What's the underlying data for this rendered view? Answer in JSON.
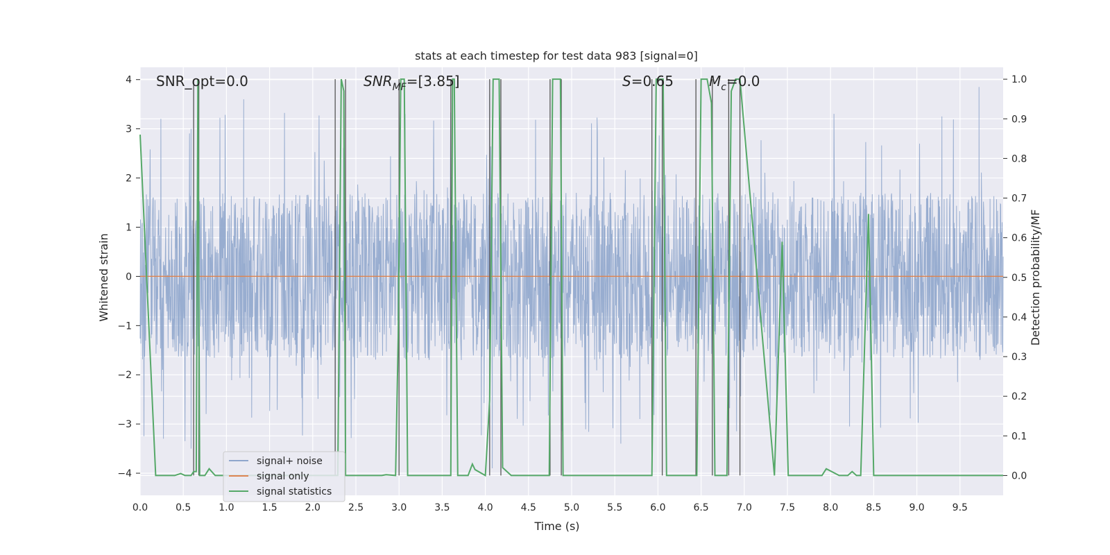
{
  "chart_data": {
    "type": "line",
    "title": "stats at each timestep for test data 983 [signal=0]",
    "xlabel": "Time (s)",
    "ylabel_left": "Whitened strain",
    "ylabel_right": "Detection probability/MF",
    "xlim": [
      0.0,
      10.0
    ],
    "ylim_left": [
      -4.45,
      4.25
    ],
    "ylim_right": [
      -0.05,
      1.03
    ],
    "x_ticks": [
      "0.0",
      "0.5",
      "1.0",
      "1.5",
      "2.0",
      "2.5",
      "3.0",
      "3.5",
      "4.0",
      "4.5",
      "5.0",
      "5.5",
      "6.0",
      "6.5",
      "7.0",
      "7.5",
      "8.0",
      "8.5",
      "9.0",
      "9.5"
    ],
    "y_left_ticks": [
      "−4",
      "−3",
      "−2",
      "−1",
      "0",
      "1",
      "2",
      "3",
      "4"
    ],
    "y_right_ticks": [
      "0.0",
      "0.1",
      "0.2",
      "0.3",
      "0.4",
      "0.5",
      "0.6",
      "0.7",
      "0.8",
      "0.9",
      "1.0"
    ],
    "grid": true,
    "legend_position": "lower-left",
    "annotations": {
      "snr_opt": "SNR_opt=0.0",
      "snr_mf_symbol": "SNR",
      "snr_mf_sub": "MF",
      "snr_mf_value": "=[3.85]",
      "s_symbol": "S",
      "s_value": "=0.65",
      "mc_symbol": "M",
      "mc_sub": "c",
      "mc_value": "=0.0"
    },
    "series": [
      {
        "name": "signal+ noise",
        "color": "#8fa6cc",
        "axis": "left",
        "envelope": {
          "typical_range": [
            -1.7,
            1.7
          ],
          "peak_max": 3.9,
          "peak_min": -3.7
        },
        "notable_points": [
          [
            0.59,
            3.0
          ],
          [
            0.59,
            -3.5
          ],
          [
            0.27,
            -3.3
          ],
          [
            1.2,
            3.6
          ],
          [
            3.07,
            3.3
          ],
          [
            4.05,
            3.7
          ],
          [
            4.08,
            -3.9
          ],
          [
            5.57,
            -3.4
          ],
          [
            8.22,
            -3.05
          ],
          [
            9.29,
            3.25
          ],
          [
            9.72,
            3.85
          ]
        ]
      },
      {
        "name": "signal only",
        "color": "#dd8452",
        "axis": "left",
        "x": [
          0.0,
          10.0
        ],
        "y": [
          0.0,
          0.0
        ]
      },
      {
        "name": "signal statistics",
        "color": "#55a868",
        "axis": "right",
        "x": [
          0.0,
          0.18,
          0.4,
          0.47,
          0.52,
          0.59,
          0.62,
          0.65,
          0.67,
          0.69,
          0.75,
          0.8,
          0.87,
          0.93,
          0.98,
          1.0,
          2.2,
          2.29,
          2.33,
          2.36,
          2.38,
          2.42,
          2.5,
          2.7,
          2.8,
          2.85,
          2.96,
          2.99,
          3.02,
          3.06,
          3.1,
          3.15,
          3.19,
          3.5,
          3.6,
          3.62,
          3.64,
          3.68,
          3.8,
          3.85,
          3.88,
          4.0,
          4.05,
          4.09,
          4.12,
          4.16,
          4.2,
          4.3,
          4.6,
          4.74,
          4.78,
          4.82,
          4.87,
          4.9,
          5.93,
          5.98,
          6.06,
          6.1,
          6.45,
          6.5,
          6.57,
          6.62,
          6.66,
          6.8,
          6.85,
          6.9,
          6.95,
          7.35,
          7.44,
          7.51,
          7.9,
          7.95,
          8.1,
          8.2,
          8.25,
          8.3,
          8.35,
          8.44,
          8.5,
          10.0
        ],
        "y": [
          0.86,
          0.0,
          0.0,
          0.005,
          0.0,
          0.0,
          0.01,
          0.01,
          1.0,
          0.0,
          0.0,
          0.017,
          0.0,
          0.0,
          0.0,
          0.0,
          0.0,
          0.0,
          1.0,
          0.97,
          0.0,
          0.0,
          0.0,
          0.0,
          0.0,
          0.002,
          0.0,
          0.35,
          1.0,
          1.0,
          0.0,
          0.0,
          0.0,
          0.0,
          0.0,
          1.0,
          1.0,
          0.0,
          0.0,
          0.029,
          0.015,
          0.0,
          0.19,
          1.0,
          1.0,
          1.0,
          0.02,
          0.0,
          0.0,
          0.0,
          1.0,
          1.0,
          1.0,
          0.0,
          0.0,
          1.0,
          1.0,
          0.0,
          0.0,
          1.0,
          1.0,
          0.94,
          0.0,
          0.0,
          0.97,
          1.0,
          1.0,
          0.0,
          0.59,
          0.0,
          0.0,
          0.017,
          0.0,
          0.0,
          0.01,
          0.0,
          0.0,
          0.66,
          0.0,
          0.0
        ]
      }
    ],
    "vertical_markers": {
      "color": "#555555",
      "x": [
        0.62,
        0.68,
        2.26,
        2.38,
        3.0,
        3.6,
        4.05,
        4.18,
        4.75,
        4.88,
        5.93,
        6.05,
        6.44,
        6.63,
        6.82,
        6.95
      ]
    }
  }
}
